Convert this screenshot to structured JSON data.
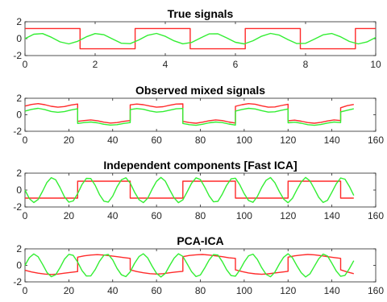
{
  "colors": {
    "red": "#ff2a2a",
    "green": "#33ee33"
  },
  "chart_data": [
    {
      "type": "line",
      "title": "True signals",
      "xlim": [
        0,
        10
      ],
      "ylim": [
        -2,
        2
      ],
      "xticks": [
        0,
        2,
        4,
        6,
        8,
        10
      ],
      "yticks": [
        -2,
        0,
        2
      ],
      "series": [
        {
          "color": "#ff2a2a",
          "x": [
            0,
            1.57,
            1.57,
            3.14,
            3.14,
            4.71,
            4.71,
            6.28,
            6.28,
            7.85,
            7.85,
            9.42,
            9.42,
            10
          ],
          "y": [
            1.2,
            1.2,
            -1.2,
            -1.2,
            1.2,
            1.2,
            -1.2,
            -1.2,
            1.2,
            1.2,
            -1.2,
            -1.2,
            1.2,
            1.2
          ]
        },
        {
          "color": "#33ee33",
          "x": [
            0,
            0.25,
            0.5,
            0.75,
            1,
            1.25,
            1.5,
            1.75,
            2,
            2.25,
            2.5,
            2.75,
            3,
            3.25,
            3.5,
            3.75,
            4,
            4.25,
            4.5,
            4.75,
            5,
            5.25,
            5.5,
            5.75,
            6,
            6.25,
            6.5,
            6.75,
            7,
            7.25,
            7.5,
            7.75,
            8,
            8.25,
            8.5,
            8.75,
            9,
            9.25,
            9.5,
            9.75,
            10
          ],
          "y": [
            0,
            0.52,
            0.6,
            0.17,
            -0.38,
            -0.62,
            -0.31,
            0.22,
            0.6,
            0.47,
            -0.05,
            -0.54,
            -0.59,
            -0.14,
            0.4,
            0.62,
            0.28,
            -0.26,
            -0.61,
            -0.45,
            0.08,
            0.56,
            0.57,
            0.1,
            -0.43,
            -0.62,
            -0.25,
            0.3,
            0.62,
            0.42,
            -0.11,
            -0.58,
            -0.55,
            -0.06,
            0.46,
            0.61,
            0.22,
            -0.33,
            -0.62,
            -0.39,
            0.14
          ]
        }
      ]
    },
    {
      "type": "line",
      "title": "Observed mixed signals",
      "xlim": [
        0,
        160
      ],
      "ylim": [
        -2,
        2
      ],
      "xticks": [
        0,
        20,
        40,
        60,
        80,
        100,
        120,
        140,
        160
      ],
      "yticks": [
        -2,
        0,
        2
      ],
      "series": [
        {
          "color": "#ff2a2a",
          "x": [
            0,
            3,
            6,
            9,
            12,
            15,
            18,
            21,
            24,
            24,
            27,
            30,
            33,
            36,
            39,
            42,
            45,
            48,
            48,
            51,
            54,
            57,
            60,
            63,
            66,
            69,
            72,
            72,
            75,
            78,
            81,
            84,
            87,
            90,
            93,
            96,
            96,
            99,
            102,
            105,
            108,
            111,
            114,
            117,
            120,
            120,
            123,
            126,
            129,
            132,
            135,
            138,
            141,
            144,
            144,
            147,
            150
          ],
          "y": [
            1.05,
            1.25,
            1.35,
            1.22,
            1.02,
            0.92,
            1.0,
            1.18,
            1.3,
            -0.8,
            -0.7,
            -0.62,
            -0.72,
            -0.9,
            -1.0,
            -0.95,
            -0.8,
            -0.7,
            1.2,
            1.3,
            1.22,
            1.05,
            0.92,
            0.98,
            1.15,
            1.3,
            1.32,
            -0.8,
            -0.95,
            -1.02,
            -0.9,
            -0.72,
            -0.62,
            -0.7,
            -0.88,
            -1.0,
            1.02,
            1.22,
            1.35,
            1.28,
            1.08,
            0.92,
            0.95,
            1.12,
            1.28,
            -0.72,
            -0.65,
            -0.78,
            -0.95,
            -1.02,
            -0.92,
            -0.75,
            -0.62,
            -0.7,
            0.85,
            1.1,
            1.25
          ]
        },
        {
          "color": "#33ee33",
          "x": [
            0,
            3,
            6,
            9,
            12,
            15,
            18,
            21,
            24,
            24,
            27,
            30,
            33,
            36,
            39,
            42,
            45,
            48,
            48,
            51,
            54,
            57,
            60,
            63,
            66,
            69,
            72,
            72,
            75,
            78,
            81,
            84,
            87,
            90,
            93,
            96,
            96,
            99,
            102,
            105,
            108,
            111,
            114,
            117,
            120,
            120,
            123,
            126,
            129,
            132,
            135,
            138,
            141,
            144,
            144,
            147,
            150
          ],
          "y": [
            0.45,
            0.65,
            0.78,
            0.62,
            0.4,
            0.3,
            0.38,
            0.58,
            0.72,
            -1.05,
            -0.95,
            -0.88,
            -0.98,
            -1.15,
            -1.25,
            -1.2,
            -1.05,
            -0.95,
            0.62,
            0.75,
            0.66,
            0.46,
            0.32,
            0.38,
            0.56,
            0.72,
            0.76,
            -1.05,
            -1.2,
            -1.28,
            -1.15,
            -0.98,
            -0.88,
            -0.95,
            -1.12,
            -1.25,
            0.45,
            0.64,
            0.78,
            0.7,
            0.5,
            0.32,
            0.36,
            0.55,
            0.7,
            -0.98,
            -0.9,
            -1.02,
            -1.2,
            -1.28,
            -1.18,
            -1.0,
            -0.88,
            -0.95,
            0.35,
            0.55,
            0.72
          ]
        }
      ]
    },
    {
      "type": "line",
      "title": "Independent components [Fast ICA]",
      "xlim": [
        0,
        160
      ],
      "ylim": [
        -2,
        2
      ],
      "xticks": [
        0,
        20,
        40,
        60,
        80,
        100,
        120,
        140,
        160
      ],
      "yticks": [
        -2,
        0,
        2
      ],
      "series": [
        {
          "color": "#ff2a2a",
          "x": [
            0,
            24,
            24,
            48,
            48,
            72,
            72,
            96,
            96,
            120,
            120,
            144,
            144,
            150
          ],
          "y": [
            -0.95,
            -0.95,
            1.05,
            1.05,
            -0.95,
            -0.95,
            1.05,
            1.05,
            -0.95,
            -0.95,
            1.05,
            1.05,
            -0.95,
            -0.95
          ]
        },
        {
          "color": "#33ee33",
          "x": [
            0,
            2,
            4,
            6,
            8,
            10,
            12,
            14,
            16,
            18,
            20,
            22,
            24,
            26,
            28,
            30,
            32,
            34,
            36,
            38,
            40,
            42,
            44,
            46,
            48,
            50,
            52,
            54,
            56,
            58,
            60,
            62,
            64,
            66,
            68,
            70,
            72,
            74,
            76,
            78,
            80,
            82,
            84,
            86,
            88,
            90,
            92,
            94,
            96,
            98,
            100,
            102,
            104,
            106,
            108,
            110,
            112,
            114,
            116,
            118,
            120,
            122,
            124,
            126,
            128,
            130,
            132,
            134,
            136,
            138,
            140,
            142,
            144,
            146,
            148,
            150
          ],
          "y": [
            0,
            -1.01,
            -1.48,
            -1.11,
            -0.14,
            0.9,
            1.47,
            1.21,
            0.29,
            -0.79,
            -1.43,
            -1.29,
            -0.43,
            0.66,
            1.38,
            1.36,
            0.57,
            -0.53,
            -1.31,
            -1.42,
            -0.71,
            0.39,
            1.22,
            1.46,
            0.83,
            -0.25,
            -1.13,
            -1.49,
            -0.95,
            0.1,
            1.03,
            1.5,
            1.06,
            0.05,
            -0.92,
            -1.49,
            -1.16,
            -0.2,
            0.81,
            1.45,
            1.25,
            0.35,
            -0.69,
            -1.39,
            -1.33,
            -0.49,
            0.56,
            1.32,
            1.4,
            0.63,
            -0.43,
            -1.24,
            -1.45,
            -0.76,
            0.3,
            1.16,
            1.48,
            0.88,
            -0.17,
            -1.06,
            -1.5,
            -0.98,
            0.02,
            0.95,
            1.5,
            1.09,
            0.13,
            -0.86,
            -1.47,
            -1.21,
            -0.27,
            0.74,
            1.43,
            1.29,
            0.42,
            -0.64
          ]
        }
      ]
    },
    {
      "type": "line",
      "title": "PCA-ICA",
      "xlim": [
        0,
        160
      ],
      "ylim": [
        -2,
        2
      ],
      "xticks": [
        0,
        20,
        40,
        60,
        80,
        100,
        120,
        140,
        160
      ],
      "yticks": [
        -2,
        0,
        2
      ],
      "series": [
        {
          "color": "#ff2a2a",
          "x": [
            0,
            3,
            6,
            9,
            12,
            15,
            18,
            21,
            24,
            24,
            27,
            30,
            33,
            36,
            39,
            42,
            45,
            48,
            48,
            51,
            54,
            57,
            60,
            63,
            66,
            69,
            72,
            72,
            75,
            78,
            81,
            84,
            87,
            90,
            93,
            96,
            96,
            99,
            102,
            105,
            108,
            111,
            114,
            117,
            120,
            120,
            123,
            126,
            129,
            132,
            135,
            138,
            141,
            144,
            144,
            147,
            150
          ],
          "y": [
            -0.6,
            -0.8,
            -0.95,
            -1.05,
            -1.1,
            -1.05,
            -0.95,
            -0.85,
            -0.75,
            1.0,
            1.15,
            1.25,
            1.3,
            1.25,
            1.15,
            1.05,
            0.95,
            0.85,
            -0.55,
            -0.75,
            -0.9,
            -1.0,
            -1.05,
            -1.0,
            -0.9,
            -0.8,
            -0.72,
            1.05,
            1.2,
            1.28,
            1.32,
            1.25,
            1.15,
            1.05,
            0.92,
            0.85,
            -0.55,
            -0.75,
            -0.92,
            -1.02,
            -1.08,
            -1.02,
            -0.92,
            -0.82,
            -0.72,
            1.0,
            1.15,
            1.25,
            1.32,
            1.28,
            1.18,
            1.05,
            0.95,
            0.85,
            -0.55,
            -0.8,
            -1.0
          ]
        },
        {
          "color": "#33ee33",
          "x": [
            0,
            2,
            4,
            6,
            8,
            10,
            12,
            14,
            16,
            18,
            20,
            22,
            24,
            26,
            28,
            30,
            32,
            34,
            36,
            38,
            40,
            42,
            44,
            46,
            48,
            50,
            52,
            54,
            56,
            58,
            60,
            62,
            64,
            66,
            68,
            70,
            72,
            74,
            76,
            78,
            80,
            82,
            84,
            86,
            88,
            90,
            92,
            94,
            96,
            98,
            100,
            102,
            104,
            106,
            108,
            110,
            112,
            114,
            116,
            118,
            120,
            122,
            124,
            126,
            128,
            130,
            132,
            134,
            136,
            138,
            140,
            142,
            144,
            146,
            148,
            150
          ],
          "y": [
            0,
            0.94,
            1.39,
            1.04,
            0.13,
            -0.85,
            -1.38,
            -1.13,
            -0.27,
            0.74,
            1.34,
            1.21,
            0.4,
            -0.62,
            -1.29,
            -1.28,
            -0.53,
            0.5,
            1.23,
            1.33,
            0.66,
            -0.37,
            -1.14,
            -1.37,
            -0.78,
            0.24,
            1.06,
            1.4,
            0.89,
            -0.1,
            -0.97,
            -1.4,
            -0.99,
            -0.04,
            0.87,
            1.4,
            1.09,
            0.18,
            -0.76,
            -1.36,
            -1.17,
            -0.32,
            0.65,
            1.31,
            1.25,
            0.46,
            -0.53,
            -1.24,
            -1.31,
            -0.59,
            0.4,
            1.16,
            1.36,
            0.71,
            -0.28,
            -1.09,
            -1.39,
            -0.83,
            0.16,
            0.99,
            1.4,
            0.93,
            -0.02,
            -0.89,
            -1.4,
            -1.03,
            -0.12,
            0.79,
            1.37,
            1.13,
            0.26,
            -0.69,
            -1.33,
            -1.21,
            -0.39,
            0.57
          ]
        }
      ]
    }
  ]
}
